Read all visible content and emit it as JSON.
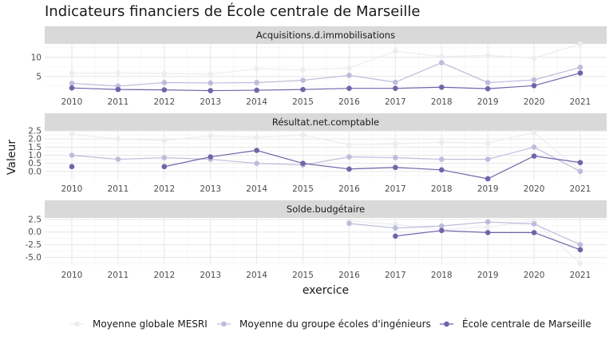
{
  "chart_data": {
    "type": "line",
    "title": "Indicateurs financiers de École centrale de Marseille",
    "xlabel": "exercice",
    "ylabel": "Valeur",
    "legend_position": "bottom",
    "grid": true,
    "x": [
      2010,
      2011,
      2012,
      2013,
      2014,
      2015,
      2016,
      2017,
      2018,
      2019,
      2020,
      2021
    ],
    "series_styles": [
      {
        "name": "Moyenne globale MESRI",
        "color": "#ececf3"
      },
      {
        "name": "Moyenne du groupe écoles d'ingénieurs",
        "color": "#bcbddc"
      },
      {
        "name": "École centrale de Marseille",
        "color": "#7263aa"
      }
    ],
    "panels": [
      {
        "label": "Acquisitions.d.immobilisations",
        "ylim": [
          1.0,
          13.5
        ],
        "yticks": [
          5,
          10
        ],
        "series": [
          {
            "name": "Moyenne globale MESRI",
            "values": [
              5.8,
              5.9,
              5.8,
              5.6,
              7.0,
              6.7,
              7.2,
              11.6,
              10.2,
              10.5,
              9.8,
              13.5
            ]
          },
          {
            "name": "Moyenne du groupe écoles d'ingénieurs",
            "values": [
              3.2,
              2.5,
              3.4,
              3.3,
              3.4,
              4.0,
              5.3,
              3.5,
              8.6,
              3.4,
              4.1,
              7.4
            ]
          },
          {
            "name": "École centrale de Marseille",
            "values": [
              2.0,
              1.6,
              1.5,
              1.3,
              1.4,
              1.6,
              1.9,
              1.9,
              2.2,
              1.8,
              2.6,
              5.9
            ]
          }
        ]
      },
      {
        "label": "Résultat.net.comptable",
        "ylim": [
          -0.5,
          2.5
        ],
        "yticks": [
          0.0,
          0.5,
          1.0,
          1.5,
          2.0,
          2.5
        ],
        "ytick_labels": [
          "0.0",
          "0.5",
          "1.0",
          "1.5",
          "2.0",
          "2.5"
        ],
        "series": [
          {
            "name": "Moyenne globale MESRI",
            "values": [
              2.3,
              2.0,
              1.9,
              2.2,
              2.1,
              2.25,
              1.65,
              1.7,
              1.8,
              1.75,
              2.4,
              0.05
            ]
          },
          {
            "name": "Moyenne du groupe écoles d'ingénieurs",
            "values": [
              1.0,
              0.75,
              0.85,
              0.75,
              0.5,
              0.4,
              0.9,
              0.85,
              0.75,
              0.75,
              1.5,
              0.0
            ]
          },
          {
            "name": "École centrale de Marseille",
            "values": [
              0.3,
              null,
              0.3,
              0.9,
              1.3,
              0.5,
              0.15,
              0.25,
              0.1,
              -0.45,
              0.95,
              0.55
            ]
          }
        ]
      },
      {
        "label": "Solde.budgétaire",
        "ylim": [
          -6.2,
          2.8
        ],
        "yticks": [
          -5.0,
          -2.5,
          0.0,
          2.5
        ],
        "ytick_labels": [
          "-5.0",
          "-2.5",
          "0.0",
          "2.5"
        ],
        "series": [
          {
            "name": "Moyenne globale MESRI",
            "values": [
              null,
              null,
              null,
              null,
              null,
              null,
              2.2,
              1.5,
              0.5,
              1.0,
              2.2,
              -6.2
            ]
          },
          {
            "name": "Moyenne du groupe écoles d'ingénieurs",
            "values": [
              null,
              null,
              null,
              null,
              null,
              null,
              1.7,
              0.8,
              1.2,
              2.0,
              1.6,
              -2.5
            ]
          },
          {
            "name": "École centrale de Marseille",
            "values": [
              null,
              null,
              null,
              null,
              null,
              null,
              null,
              -0.8,
              0.3,
              -0.1,
              -0.1,
              -3.5
            ]
          }
        ]
      }
    ]
  }
}
